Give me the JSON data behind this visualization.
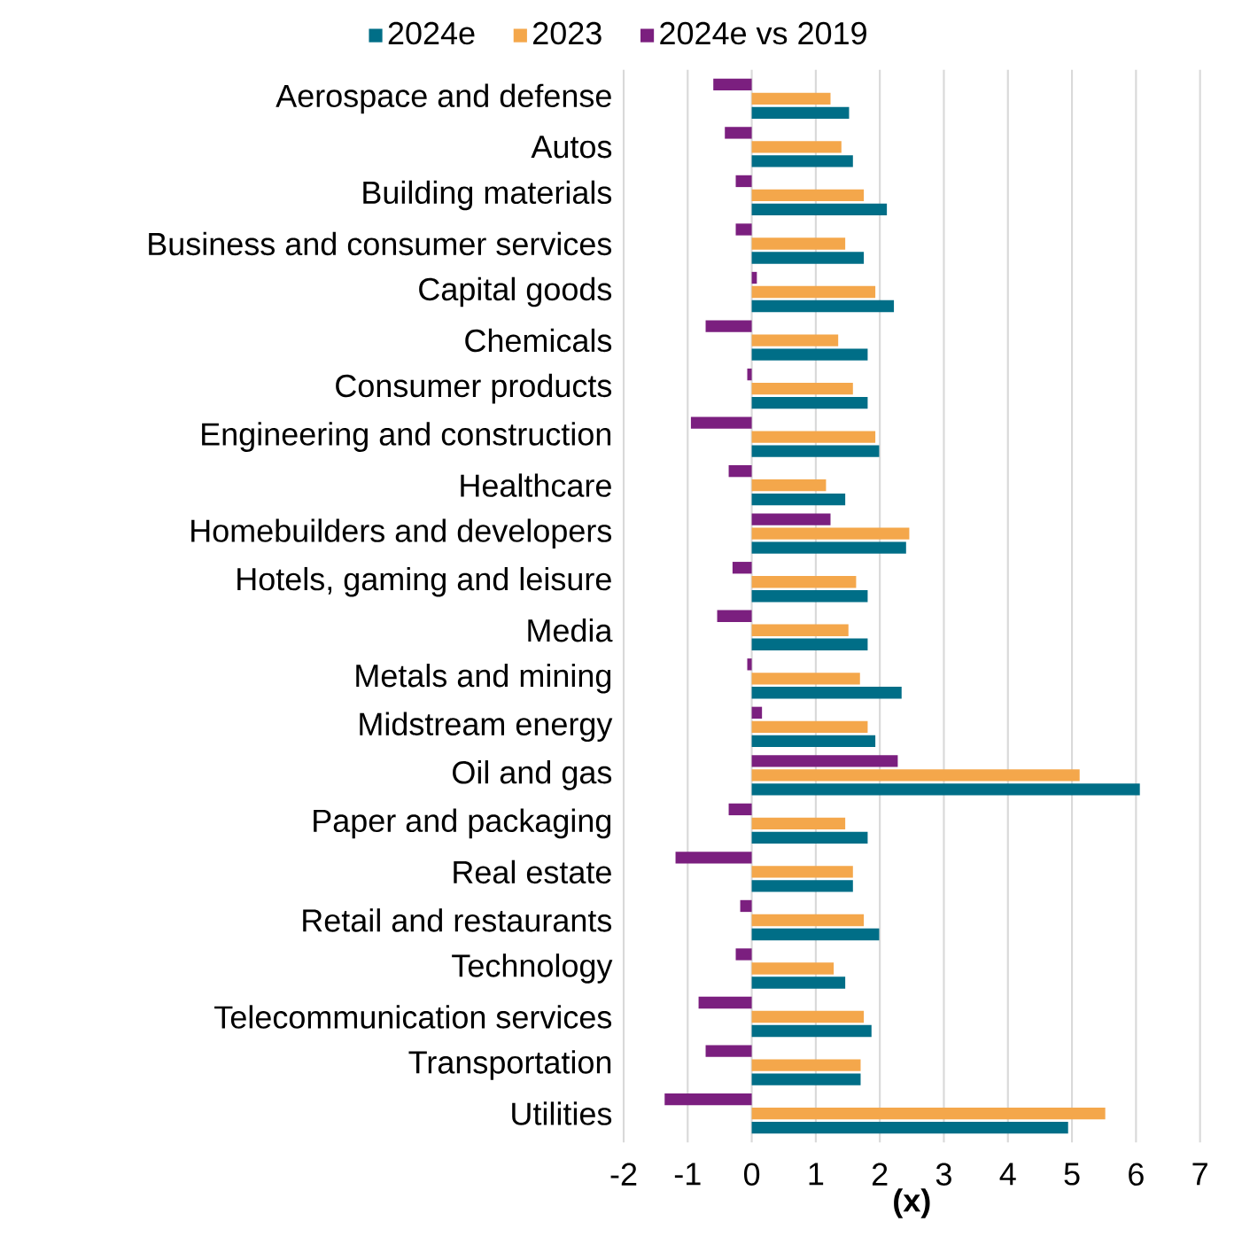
{
  "chart_data": {
    "type": "bar",
    "orientation": "horizontal",
    "xlabel": "(x)",
    "categories": [
      "Aerospace and defense",
      "Autos",
      "Building materials",
      "Business and consumer services",
      "Capital goods",
      "Chemicals",
      "Consumer products",
      "Engineering and construction",
      "Healthcare",
      "Homebuilders and developers",
      "Hotels, gaming and leisure",
      "Media",
      "Metals and mining",
      "Midstream energy",
      "Oil and gas",
      "Paper and packaging",
      "Real estate",
      "Retail and restaurants",
      "Technology",
      "Telecommunication services",
      "Transportation",
      "Utilities"
    ],
    "series": [
      {
        "name": "2024e",
        "color": "#006e87",
        "values": [
          1.52,
          1.58,
          2.11,
          1.75,
          2.22,
          1.81,
          1.81,
          1.99,
          1.46,
          2.41,
          1.81,
          1.81,
          2.34,
          1.93,
          6.06,
          1.81,
          1.58,
          1.99,
          1.46,
          1.87,
          1.7,
          4.94
        ]
      },
      {
        "name": "2023",
        "color": "#f4a74b",
        "values": [
          1.23,
          1.4,
          1.75,
          1.46,
          1.93,
          1.35,
          1.58,
          1.93,
          1.16,
          2.46,
          1.63,
          1.51,
          1.69,
          1.81,
          5.12,
          1.46,
          1.58,
          1.75,
          1.28,
          1.75,
          1.7,
          5.52
        ]
      },
      {
        "name": "2024e vs 2019",
        "color": "#7b1f7f",
        "values": [
          -0.6,
          -0.42,
          -0.25,
          -0.25,
          0.08,
          -0.72,
          -0.07,
          -0.95,
          -0.36,
          1.23,
          -0.3,
          -0.54,
          -0.07,
          0.16,
          2.28,
          -0.36,
          -1.19,
          -0.18,
          -0.25,
          -0.83,
          -0.72,
          -1.36
        ]
      }
    ],
    "xlim": [
      -2,
      7
    ],
    "xticks": [
      -2,
      -1,
      0,
      1,
      2,
      3,
      4,
      5,
      6,
      7
    ],
    "grid": "x",
    "legend": "top"
  }
}
